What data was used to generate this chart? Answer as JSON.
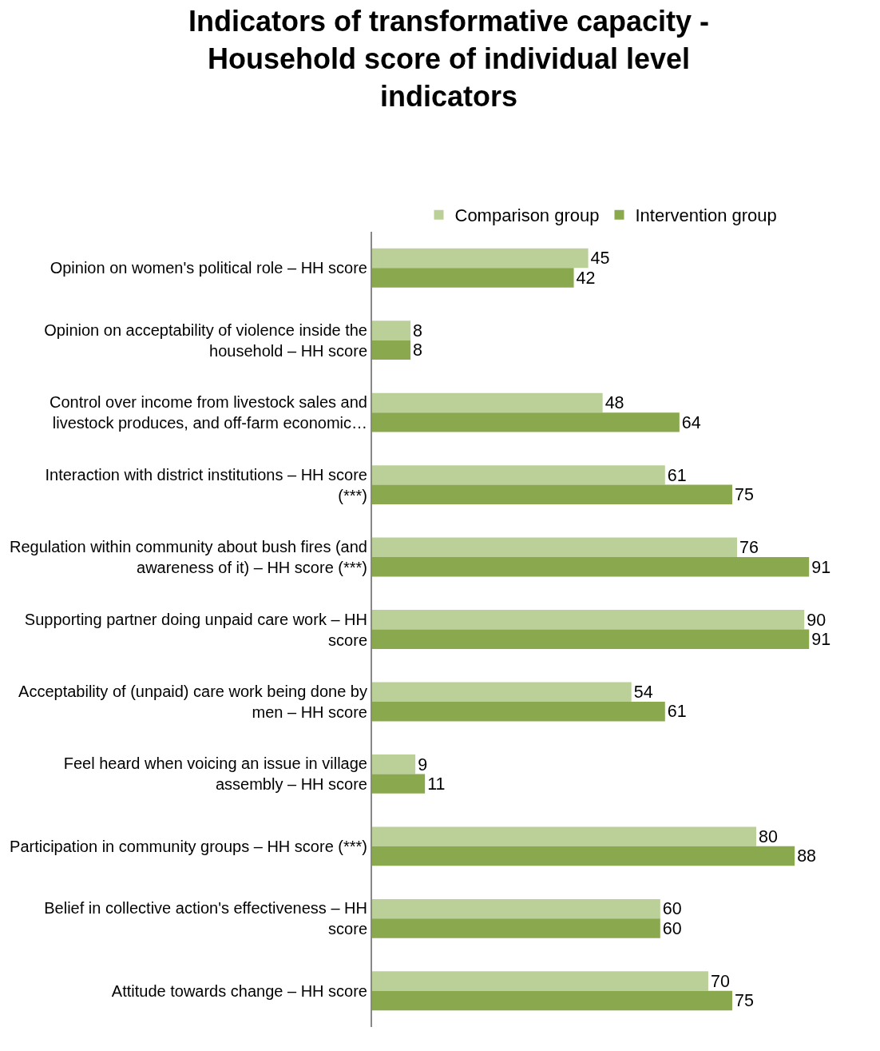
{
  "chart_data": {
    "type": "bar",
    "orientation": "horizontal",
    "title": "Indicators of transformative capacity - Household score of individual level indicators",
    "categories": [
      "Opinion on women's political role – HH score",
      "Opinion on acceptability of violence inside the household – HH score",
      "Control over income from livestock sales and livestock produces, and off-farm economic…",
      "Interaction with district institutions – HH score (***)",
      "Regulation within community about bush fires (and awareness of it) – HH score (***)",
      "Supporting partner doing unpaid care work – HH score",
      "Acceptability of (unpaid) care work being done by men – HH score",
      "Feel heard when voicing an issue in village assembly – HH score",
      "Participation in community groups – HH score (***)",
      "Belief in collective action's effectiveness – HH score",
      "Attitude towards change – HH score"
    ],
    "series": [
      {
        "name": "Comparison group",
        "color": "#bad098",
        "values": [
          45,
          8,
          48,
          61,
          76,
          90,
          54,
          9,
          80,
          60,
          70
        ]
      },
      {
        "name": "Intervention group",
        "color": "#8aa84e",
        "values": [
          42,
          8,
          64,
          75,
          91,
          91,
          61,
          11,
          88,
          60,
          75
        ]
      }
    ],
    "data_labels": true,
    "legend": "top"
  }
}
